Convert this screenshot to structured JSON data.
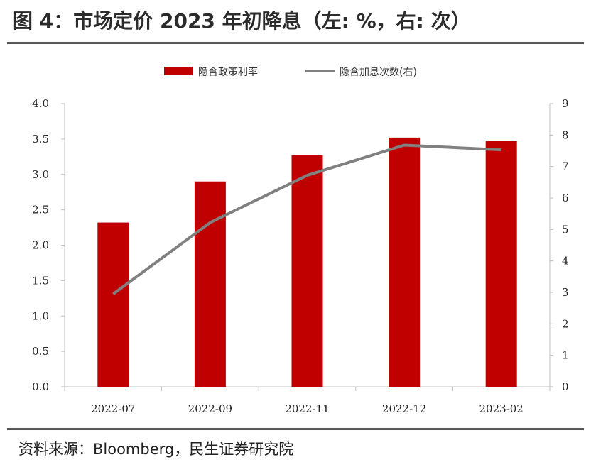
{
  "title": "图 4：市场定价 2023 年初降息（左: %，右: 次）",
  "source": "资料来源：Bloomberg，民生证券研究院",
  "chart_data": {
    "type": "bar+line",
    "categories": [
      "2022-07",
      "2022-09",
      "2022-11",
      "2022-12",
      "2023-02"
    ],
    "series": [
      {
        "name": "隐含政策利率",
        "type": "bar",
        "axis": "left",
        "color": "#c00000",
        "values": [
          2.32,
          2.9,
          3.27,
          3.52,
          3.47
        ]
      },
      {
        "name": "隐含加息次数(右)",
        "type": "line",
        "axis": "right",
        "color": "#808080",
        "values": [
          2.95,
          5.22,
          6.72,
          7.68,
          7.53
        ]
      }
    ],
    "y_left": {
      "min": 0,
      "max": 4,
      "ticks": [
        "0.0",
        "0.5",
        "1.0",
        "1.5",
        "2.0",
        "2.5",
        "3.0",
        "3.5",
        "4.0"
      ]
    },
    "y_right": {
      "min": 0,
      "max": 9,
      "ticks": [
        "0",
        "1",
        "2",
        "3",
        "4",
        "5",
        "6",
        "7",
        "8",
        "9"
      ]
    },
    "grid": false,
    "legend_position": "top-center"
  }
}
